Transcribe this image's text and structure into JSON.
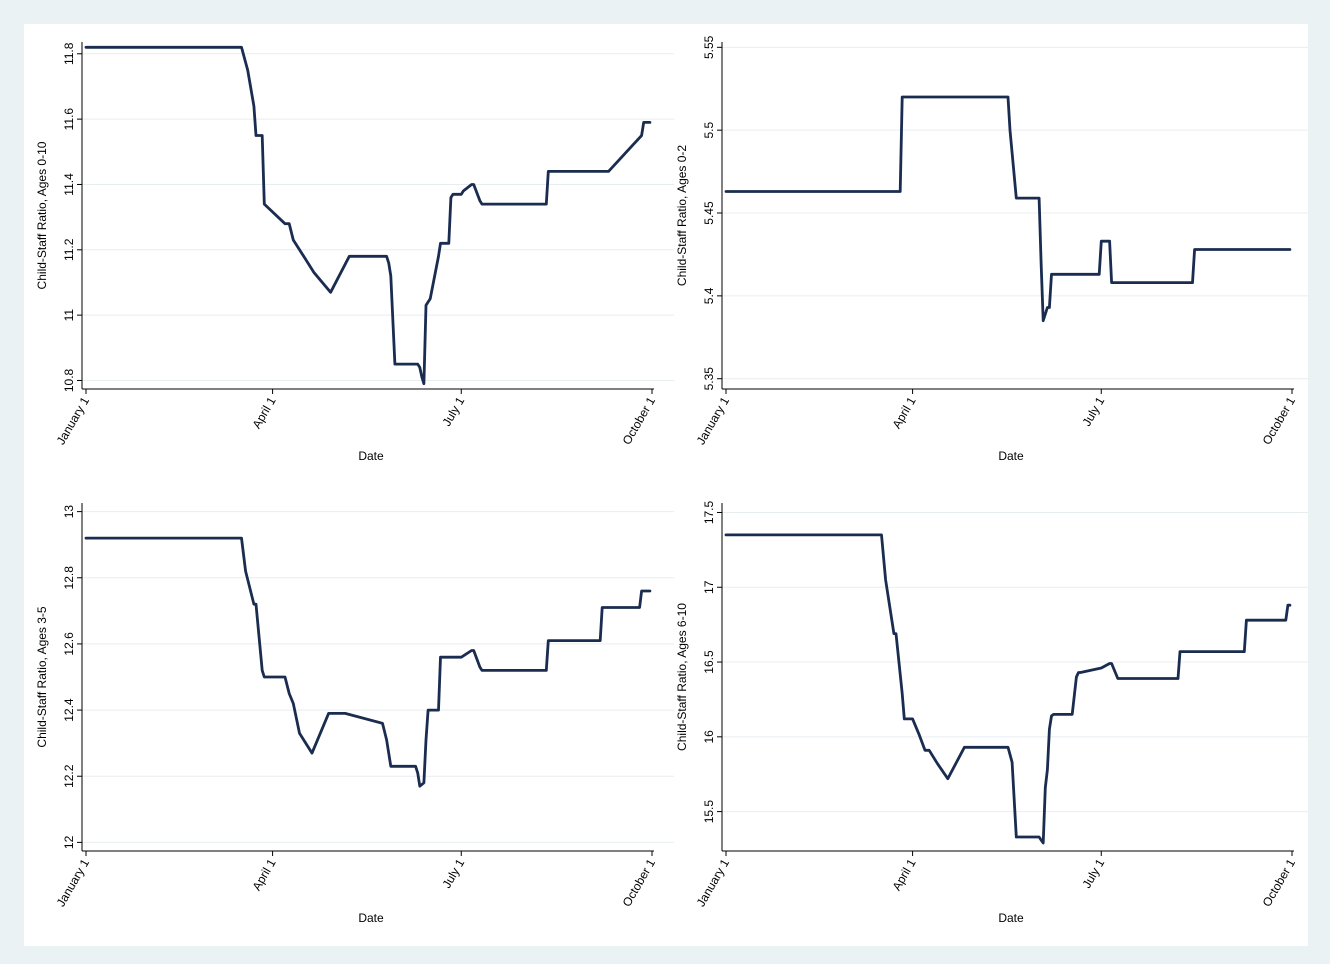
{
  "style": {
    "line_color": "#1a2c4f",
    "grid_color": "#e8eef0",
    "axis_color": "#000000"
  },
  "chart_data": [
    {
      "type": "line",
      "title": "",
      "xlabel": "Date",
      "ylabel": "Child-Staff Ratio, Ages 0-10",
      "x_tick_labels": [
        "January 1",
        "April 1",
        "July 1",
        "October 1"
      ],
      "x_tick_dates": [
        "01-01",
        "04-01",
        "07-01",
        "10-01"
      ],
      "ylim": [
        10.78,
        11.83
      ],
      "y_ticks": [
        10.8,
        11,
        11.2,
        11.4,
        11.6,
        11.8
      ],
      "y_tick_labels": [
        "10.8",
        "11",
        "11.2",
        "11.4",
        "11.6",
        "11.8"
      ],
      "grid": true,
      "series": [
        {
          "name": "",
          "x": [
            "01-01",
            "03-17",
            "03-20",
            "03-23",
            "03-24",
            "03-27",
            "03-28",
            "04-07",
            "04-09",
            "04-11",
            "04-16",
            "04-21",
            "04-29",
            "05-08",
            "05-26",
            "05-27",
            "05-28",
            "05-30",
            "06-10",
            "06-11",
            "06-12",
            "06-13",
            "06-14",
            "06-16",
            "06-20",
            "06-21",
            "06-22",
            "06-23",
            "06-24",
            "06-25",
            "06-26",
            "06-27",
            "07-01",
            "07-02",
            "07-06",
            "07-07",
            "07-10",
            "07-11",
            "07-12",
            "08-11",
            "08-12",
            "09-08",
            "09-10",
            "09-26",
            "09-27",
            "09-30"
          ],
          "y": [
            11.82,
            11.82,
            11.75,
            11.64,
            11.55,
            11.55,
            11.34,
            11.28,
            11.28,
            11.23,
            11.18,
            11.13,
            11.07,
            11.18,
            11.18,
            11.16,
            11.12,
            10.85,
            10.85,
            10.84,
            10.81,
            10.79,
            11.03,
            11.05,
            11.18,
            11.22,
            11.22,
            11.22,
            11.22,
            11.22,
            11.36,
            11.37,
            11.37,
            11.38,
            11.4,
            11.4,
            11.35,
            11.34,
            11.34,
            11.34,
            11.44,
            11.44,
            11.44,
            11.55,
            11.59,
            11.59
          ]
        }
      ]
    },
    {
      "type": "line",
      "title": "",
      "xlabel": "Date",
      "ylabel": "Child-Staff Ratio, Ages 0-2",
      "x_tick_labels": [
        "January 1",
        "April 1",
        "July 1",
        "October 1"
      ],
      "x_tick_dates": [
        "01-01",
        "04-01",
        "07-01",
        "10-01"
      ],
      "ylim": [
        5.345,
        5.552
      ],
      "y_ticks": [
        5.35,
        5.4,
        5.45,
        5.5,
        5.55
      ],
      "y_tick_labels": [
        "5.35",
        "5.4",
        "5.45",
        "5.5",
        "5.55"
      ],
      "grid": true,
      "series": [
        {
          "name": "",
          "x": [
            "01-01",
            "03-26",
            "03-27",
            "05-17",
            "05-18",
            "05-21",
            "05-22",
            "06-01",
            "06-02",
            "06-03",
            "06-05",
            "06-06",
            "06-07",
            "06-30",
            "07-01",
            "07-05",
            "07-06",
            "08-14",
            "08-15",
            "09-30"
          ],
          "y": [
            5.463,
            5.463,
            5.52,
            5.52,
            5.5,
            5.459,
            5.459,
            5.459,
            5.42,
            5.385,
            5.393,
            5.393,
            5.413,
            5.413,
            5.433,
            5.433,
            5.408,
            5.408,
            5.428,
            5.428
          ]
        }
      ]
    },
    {
      "type": "line",
      "title": "",
      "xlabel": "Date",
      "ylabel": "Child-Staff Ratio, Ages 3-5",
      "x_tick_labels": [
        "January 1",
        "April 1",
        "July 1",
        "October 1"
      ],
      "x_tick_dates": [
        "01-01",
        "04-01",
        "07-01",
        "10-01"
      ],
      "ylim": [
        11.98,
        13.02
      ],
      "y_ticks": [
        12,
        12.2,
        12.4,
        12.6,
        12.8,
        13
      ],
      "y_tick_labels": [
        "12",
        "12.2",
        "12.4",
        "12.6",
        "12.8",
        "13"
      ],
      "grid": true,
      "series": [
        {
          "name": "",
          "x": [
            "01-01",
            "03-17",
            "03-19",
            "03-23",
            "03-24",
            "03-27",
            "03-28",
            "04-07",
            "04-09",
            "04-11",
            "04-14",
            "04-20",
            "04-28",
            "05-06",
            "05-24",
            "05-26",
            "05-28",
            "06-09",
            "06-10",
            "06-11",
            "06-13",
            "06-14",
            "06-15",
            "06-17",
            "06-20",
            "06-21",
            "06-22",
            "07-01",
            "07-06",
            "07-07",
            "07-10",
            "07-11",
            "08-11",
            "08-12",
            "09-06",
            "09-07",
            "09-25",
            "09-26",
            "09-30"
          ],
          "y": [
            12.92,
            12.92,
            12.82,
            12.72,
            12.72,
            12.52,
            12.5,
            12.5,
            12.45,
            12.42,
            12.33,
            12.27,
            12.39,
            12.39,
            12.36,
            12.31,
            12.23,
            12.23,
            12.21,
            12.17,
            12.18,
            12.31,
            12.4,
            12.4,
            12.4,
            12.56,
            12.56,
            12.56,
            12.58,
            12.58,
            12.53,
            12.52,
            12.52,
            12.61,
            12.61,
            12.71,
            12.71,
            12.76,
            12.76
          ]
        }
      ]
    },
    {
      "type": "line",
      "title": "",
      "xlabel": "Date",
      "ylabel": "Child-Staff Ratio, Ages 6-10",
      "x_tick_labels": [
        "January 1",
        "April 1",
        "July 1",
        "October 1"
      ],
      "x_tick_dates": [
        "01-01",
        "04-01",
        "07-01",
        "10-01"
      ],
      "ylim": [
        15.25,
        17.55
      ],
      "y_ticks": [
        15.5,
        16,
        16.5,
        17,
        17.5
      ],
      "y_tick_labels": [
        "15.5",
        "16",
        "16.5",
        "17",
        "17.5"
      ],
      "grid": true,
      "series": [
        {
          "name": "",
          "x": [
            "01-01",
            "03-17",
            "03-19",
            "03-23",
            "03-24",
            "03-27",
            "03-28",
            "04-01",
            "04-04",
            "04-07",
            "04-09",
            "04-13",
            "04-18",
            "04-26",
            "05-01",
            "05-17",
            "05-19",
            "05-21",
            "06-01",
            "06-02",
            "06-03",
            "06-04",
            "06-05",
            "06-06",
            "06-07",
            "06-08",
            "06-09",
            "06-17",
            "06-19",
            "06-20",
            "06-21",
            "07-01",
            "07-05",
            "07-06",
            "07-09",
            "07-10",
            "08-07",
            "08-08",
            "09-08",
            "09-09",
            "09-28",
            "09-29",
            "09-30"
          ],
          "y": [
            17.35,
            17.35,
            17.05,
            16.69,
            16.69,
            16.29,
            16.12,
            16.12,
            16.02,
            15.91,
            15.91,
            15.82,
            15.72,
            15.93,
            15.93,
            15.93,
            15.83,
            15.33,
            15.33,
            15.31,
            15.29,
            15.66,
            15.78,
            16.05,
            16.14,
            16.15,
            16.15,
            16.15,
            16.4,
            16.43,
            16.43,
            16.46,
            16.49,
            16.49,
            16.39,
            16.39,
            16.39,
            16.57,
            16.57,
            16.78,
            16.78,
            16.88,
            16.88
          ]
        }
      ]
    }
  ]
}
